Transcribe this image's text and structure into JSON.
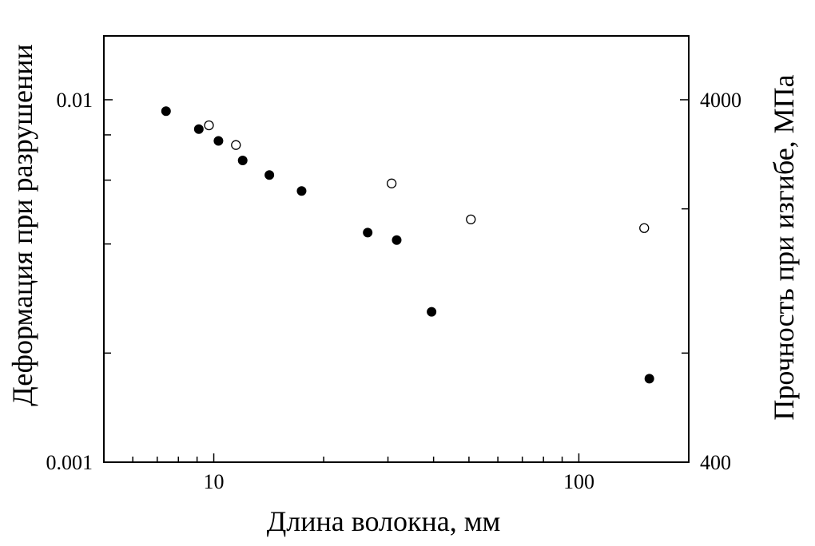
{
  "chart_data": {
    "type": "scatter",
    "x_scale": "log",
    "y_scale": "log",
    "xlabel": "Длина волокна, мм",
    "ylabel_left": "Деформация при разрушении",
    "ylabel_right": "Прочность при изгибе, МПа",
    "xlim": [
      5,
      200
    ],
    "ylim_left": [
      0.001,
      0.015
    ],
    "ylim_right": [
      400,
      6000
    ],
    "x_ticks": [
      {
        "value": 10,
        "label": "10"
      },
      {
        "value": 100,
        "label": "100"
      }
    ],
    "y_left_ticks": [
      {
        "value": 0.01,
        "label": "0.01"
      },
      {
        "value": 0.001,
        "label": "0.001"
      }
    ],
    "y_right_ticks": [
      {
        "value": 4000,
        "label": "4000"
      },
      {
        "value": 400,
        "label": "400"
      }
    ],
    "grid": false,
    "series": [
      {
        "marker": "filled-circle",
        "axis": "left",
        "color": "#000000",
        "points": [
          {
            "x": 7.4,
            "y": 0.0093
          },
          {
            "x": 9.1,
            "y": 0.0083
          },
          {
            "x": 10.3,
            "y": 0.0077
          },
          {
            "x": 12.0,
            "y": 0.0068
          },
          {
            "x": 14.2,
            "y": 0.0062
          },
          {
            "x": 17.4,
            "y": 0.0056
          },
          {
            "x": 26.4,
            "y": 0.0043
          },
          {
            "x": 31.7,
            "y": 0.0041
          },
          {
            "x": 39.5,
            "y": 0.0026
          },
          {
            "x": 156.0,
            "y": 0.0017
          }
        ]
      },
      {
        "marker": "open-circle",
        "axis": "right",
        "color": "#000000",
        "points": [
          {
            "x": 9.7,
            "y": 3400
          },
          {
            "x": 11.5,
            "y": 3000
          },
          {
            "x": 30.7,
            "y": 2350
          },
          {
            "x": 50.6,
            "y": 1870
          },
          {
            "x": 151.0,
            "y": 1770
          }
        ]
      }
    ]
  }
}
